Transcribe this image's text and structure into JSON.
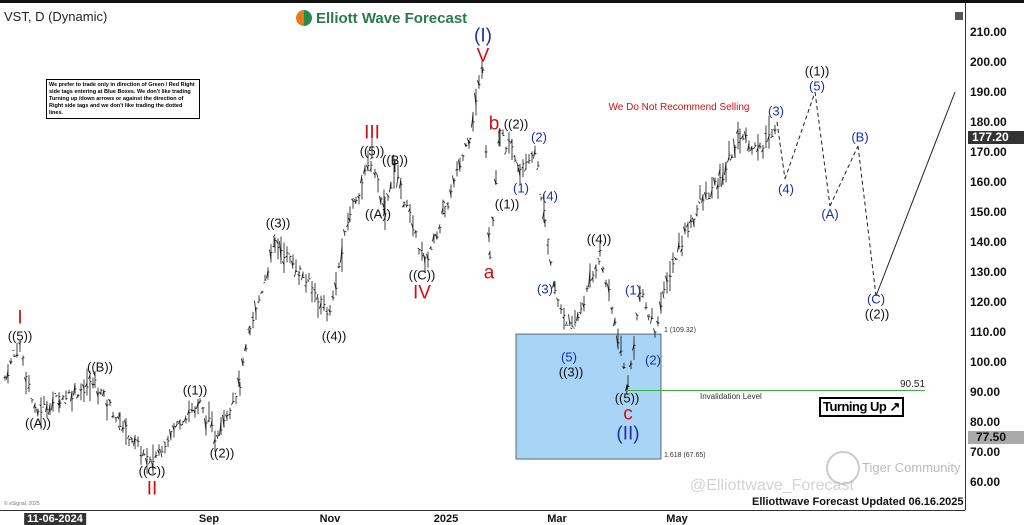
{
  "header": {
    "title": "VST, D (Dynamic)",
    "logo": "Elliott Wave Forecast"
  },
  "note": "We prefer to trade only in direction of Green / Red Right side tags entering at Blue Boxes. We don't like trading Turning up /down arrows or against the direction of Right side tags and we don't like trading the dotted lines.",
  "banner": "We Do Not Recommend Selling",
  "footer": "Elliottwave Forecast Updated 06.16.2025",
  "watermark": "Tiger Community",
  "watermark2": "@Elliottwave_Forecast",
  "copyright": "© eSignal, 2025",
  "turning": "Turning Up ↗",
  "colors": {
    "box": "#a8d4f5",
    "invalidation": "#3cb043",
    "wave_blue": "#1a2fa8",
    "wave_red": "#d01010"
  },
  "chart_data": {
    "type": "ohlc-bar",
    "symbol": "VST",
    "interval": "D",
    "ylim": [
      60,
      215
    ],
    "y_ticks": [
      "210.00",
      "200.00",
      "190.00",
      "180.00",
      "170.00",
      "160.00",
      "150.00",
      "140.00",
      "130.00",
      "120.00",
      "110.00",
      "100.00",
      "90.00",
      "80.00",
      "70.00",
      "60.00"
    ],
    "x_ticks": [
      "11-06-2024",
      "Sep",
      "Nov",
      "2025",
      "Mar",
      "May"
    ],
    "last_price": "177.20",
    "marker_price": "77.50",
    "price_path": [
      95,
      106,
      83,
      88,
      93,
      80,
      66,
      81,
      86,
      75,
      93,
      110,
      140,
      130,
      116,
      150,
      168,
      151,
      165,
      148,
      133,
      150,
      176,
      199,
      135,
      176,
      166,
      171,
      146,
      123,
      110,
      126,
      136,
      113,
      91,
      123,
      111,
      130,
      143,
      153,
      160,
      176,
      170,
      180
    ],
    "projection": [
      180,
      161,
      190,
      152,
      172,
      122,
      190
    ],
    "fib_box": {
      "top_label": "1 (109.32)",
      "bottom_label": "1.618 (67.65)",
      "top": 109.32,
      "bottom": 67.65
    },
    "invalidation": {
      "label": "Invalidation Level",
      "value": "90.51"
    },
    "wave_labels": [
      "I",
      "((5))",
      "((A))",
      "((B))",
      "((C))",
      "II",
      "((1))",
      "((2))",
      "((3))",
      "((4))",
      "III",
      "((5))",
      "((A))",
      "((B))",
      "((C))",
      "IV",
      "(I)",
      "V",
      "a",
      "b",
      "((2))",
      "((1))",
      "(1)",
      "(2)",
      "(3)",
      "(4)",
      "(5)",
      "((3))",
      "((4))",
      "(1)",
      "(2)",
      "((5))",
      "c",
      "(II)",
      "(3)",
      "(4)",
      "((1))",
      "(5)",
      "(A)",
      "(B)",
      "(C)",
      "((2))"
    ]
  }
}
